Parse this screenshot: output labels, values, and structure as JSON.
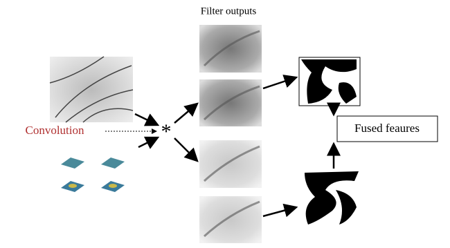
{
  "header": {
    "title": "Filter outputs"
  },
  "nodes": {
    "convolution": {
      "label": "Convolution"
    },
    "operator": {
      "label": "*"
    },
    "fused": {
      "label": "Fused feaures"
    }
  }
}
